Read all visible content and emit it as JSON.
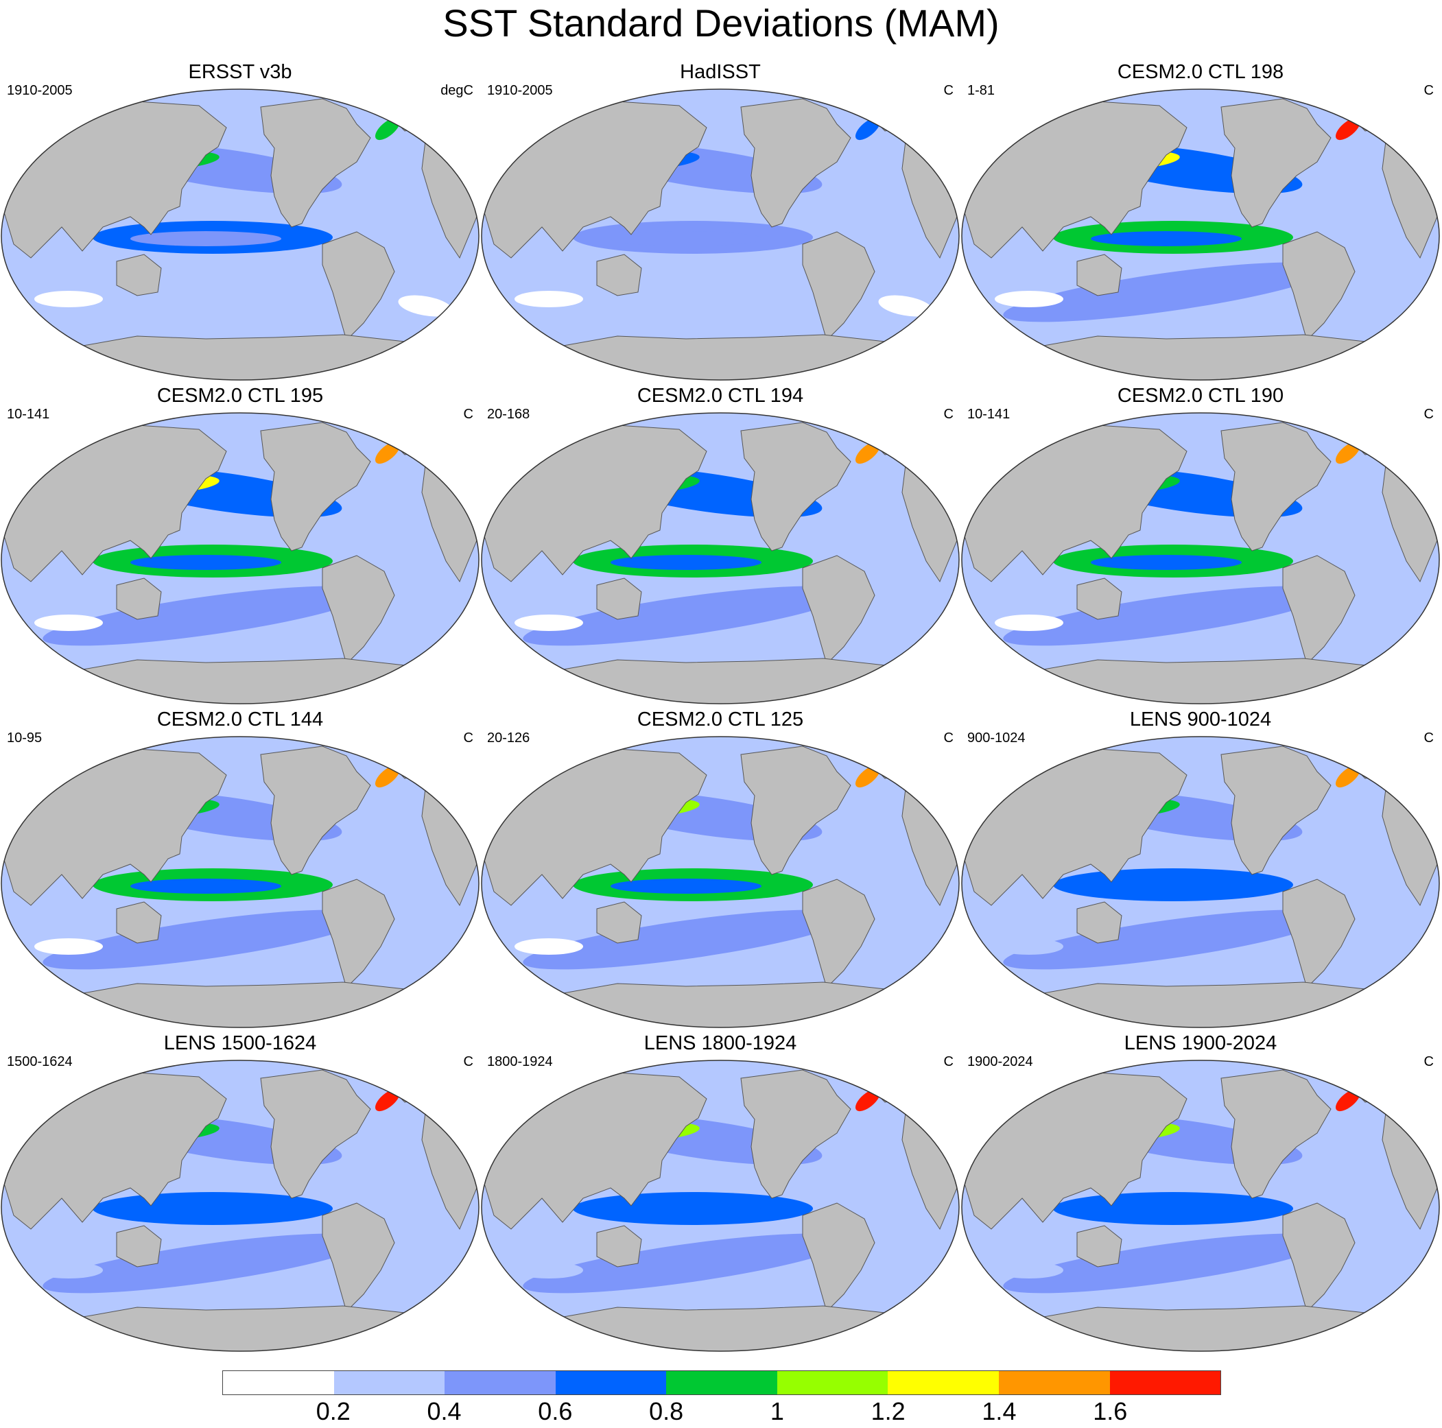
{
  "title": "SST Standard Deviations (MAM)",
  "panels": [
    {
      "title": "ERSST v3b",
      "left": "1910-2005",
      "right": "degC",
      "field": [
        0.8,
        0.9,
        0.5,
        0.6,
        0.4,
        0.3,
        0.0,
        0.2,
        0.0
      ]
    },
    {
      "title": "HadISST",
      "left": "1910-2005",
      "right": "C",
      "field": [
        0.7,
        0.7,
        0.5,
        0.5,
        0.4,
        0.3,
        0.0,
        0.2,
        0.0
      ]
    },
    {
      "title": "CESM2.0 CTL 198",
      "left": "1-81",
      "right": "C",
      "field": [
        1.3,
        1.6,
        0.7,
        0.8,
        0.6,
        0.5,
        0.2,
        0.2,
        0.0
      ]
    },
    {
      "title": "CESM2.0 CTL 195",
      "left": "10-141",
      "right": "C",
      "field": [
        1.2,
        1.4,
        0.7,
        0.8,
        0.6,
        0.5,
        0.2,
        0.2,
        0.1
      ]
    },
    {
      "title": "CESM2.0 CTL 194",
      "left": "20-168",
      "right": "C",
      "field": [
        0.9,
        1.5,
        0.7,
        0.8,
        0.6,
        0.5,
        0.2,
        0.2,
        0.1
      ]
    },
    {
      "title": "CESM2.0 CTL 190",
      "left": "10-141",
      "right": "C",
      "field": [
        0.9,
        1.5,
        0.7,
        0.8,
        0.6,
        0.5,
        0.2,
        0.2,
        0.1
      ]
    },
    {
      "title": "CESM2.0 CTL 144",
      "left": "10-95",
      "right": "C",
      "field": [
        0.8,
        1.4,
        0.7,
        0.8,
        0.5,
        0.4,
        0.2,
        0.2,
        0.1
      ]
    },
    {
      "title": "CESM2.0 CTL 125",
      "left": "20-126",
      "right": "C",
      "field": [
        1.0,
        1.4,
        0.7,
        0.8,
        0.5,
        0.4,
        0.2,
        0.2,
        0.1
      ]
    },
    {
      "title": "LENS 900-1024",
      "left": "900-1024",
      "right": "C",
      "field": [
        0.9,
        1.5,
        0.6,
        0.7,
        0.5,
        0.4,
        0.3,
        0.2,
        0.2
      ]
    },
    {
      "title": "LENS 1500-1624",
      "left": "1500-1624",
      "right": "C",
      "field": [
        0.9,
        1.6,
        0.6,
        0.7,
        0.5,
        0.4,
        0.3,
        0.2,
        0.2
      ]
    },
    {
      "title": "LENS 1800-1924",
      "left": "1800-1924",
      "right": "C",
      "field": [
        1.0,
        1.6,
        0.6,
        0.7,
        0.5,
        0.4,
        0.3,
        0.2,
        0.2
      ]
    },
    {
      "title": "LENS 1900-2024",
      "left": "1900-2024",
      "right": "C",
      "field": [
        1.0,
        1.6,
        0.6,
        0.7,
        0.5,
        0.4,
        0.3,
        0.2,
        0.2
      ]
    }
  ],
  "colorbar": {
    "levels": [
      0.2,
      0.4,
      0.6,
      0.8,
      1.0,
      1.2,
      1.4,
      1.6
    ],
    "labels": [
      "0.2",
      "0.4",
      "0.6",
      "0.8",
      "1",
      "1.2",
      "1.4",
      "1.6"
    ],
    "colors": [
      "#ffffff",
      "#b4c8ff",
      "#7d96fa",
      "#0064ff",
      "#00c832",
      "#96ff00",
      "#ffff00",
      "#ff9600",
      "#ff1900"
    ]
  },
  "land_color": "#bebebe"
}
